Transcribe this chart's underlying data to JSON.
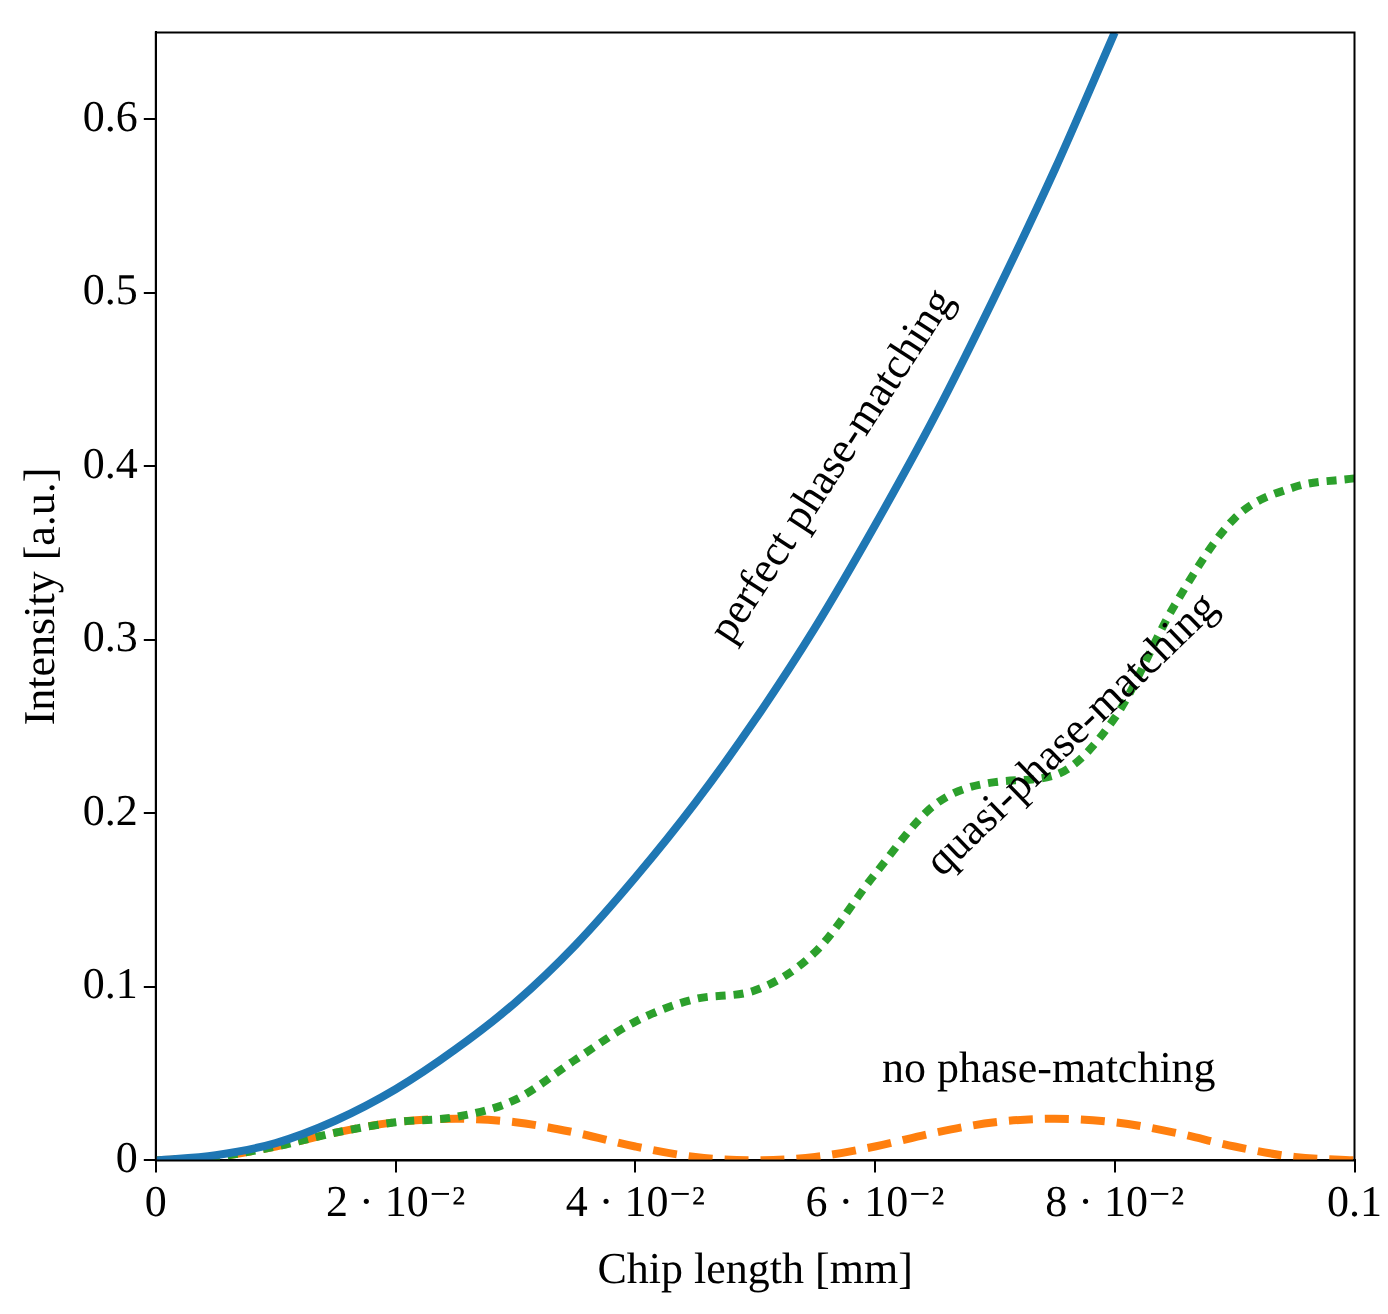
{
  "chart_data": {
    "type": "line",
    "xlabel": "Chip length [mm]",
    "ylabel": "Intensity [a.u.]",
    "xlim": [
      0,
      0.1
    ],
    "ylim": [
      0,
      0.65
    ],
    "xticks": [
      0,
      {
        "value": 0.02,
        "label": "2 · 10⁻²"
      },
      {
        "value": 0.04,
        "label": "4 · 10⁻²"
      },
      {
        "value": 0.06,
        "label": "6 · 10⁻²"
      },
      {
        "value": 0.08,
        "label": "8 · 10⁻²"
      },
      0.1
    ],
    "yticks": [
      0,
      0.1,
      0.2,
      0.3,
      0.4,
      0.5,
      0.6
    ],
    "grid": false,
    "legend": false,
    "marker": "none",
    "series": [
      {
        "name": "perfect phase-matching",
        "color": "#1f77b4",
        "line_style": "solid",
        "x": [
          0,
          0.005,
          0.01,
          0.015,
          0.02,
          0.025,
          0.03,
          0.035,
          0.04,
          0.045,
          0.05,
          0.055,
          0.06,
          0.065,
          0.07,
          0.075,
          0.08
        ],
        "values": [
          0,
          0.003,
          0.01,
          0.023,
          0.041,
          0.064,
          0.091,
          0.124,
          0.163,
          0.206,
          0.254,
          0.307,
          0.366,
          0.429,
          0.498,
          0.571,
          0.65
        ]
      },
      {
        "name": "quasi-phase-matching",
        "color": "#2ca02c",
        "line_style": "dotted",
        "x": [
          0,
          0.005,
          0.01,
          0.015,
          0.02,
          0.025,
          0.03,
          0.035,
          0.04,
          0.045,
          0.05,
          0.055,
          0.06,
          0.065,
          0.07,
          0.075,
          0.08,
          0.085,
          0.09,
          0.095,
          0.1
        ],
        "values": [
          0,
          0.002,
          0.008,
          0.016,
          0.022,
          0.025,
          0.035,
          0.058,
          0.08,
          0.093,
          0.098,
          0.12,
          0.165,
          0.205,
          0.218,
          0.222,
          0.255,
          0.32,
          0.37,
          0.388,
          0.393
        ]
      },
      {
        "name": "no phase-matching",
        "color": "#ff7f0e",
        "line_style": "dashed",
        "x": [
          0,
          0.005,
          0.01,
          0.015,
          0.02,
          0.025,
          0.03,
          0.035,
          0.04,
          0.045,
          0.05,
          0.055,
          0.06,
          0.065,
          0.07,
          0.075,
          0.08,
          0.085,
          0.09,
          0.095,
          0.1
        ],
        "values": [
          0,
          0.002,
          0.008,
          0.016,
          0.022,
          0.024,
          0.022,
          0.016,
          0.008,
          0.002,
          0,
          0.002,
          0.008,
          0.016,
          0.022,
          0.024,
          0.022,
          0.016,
          0.008,
          0.002,
          0
        ]
      }
    ]
  }
}
